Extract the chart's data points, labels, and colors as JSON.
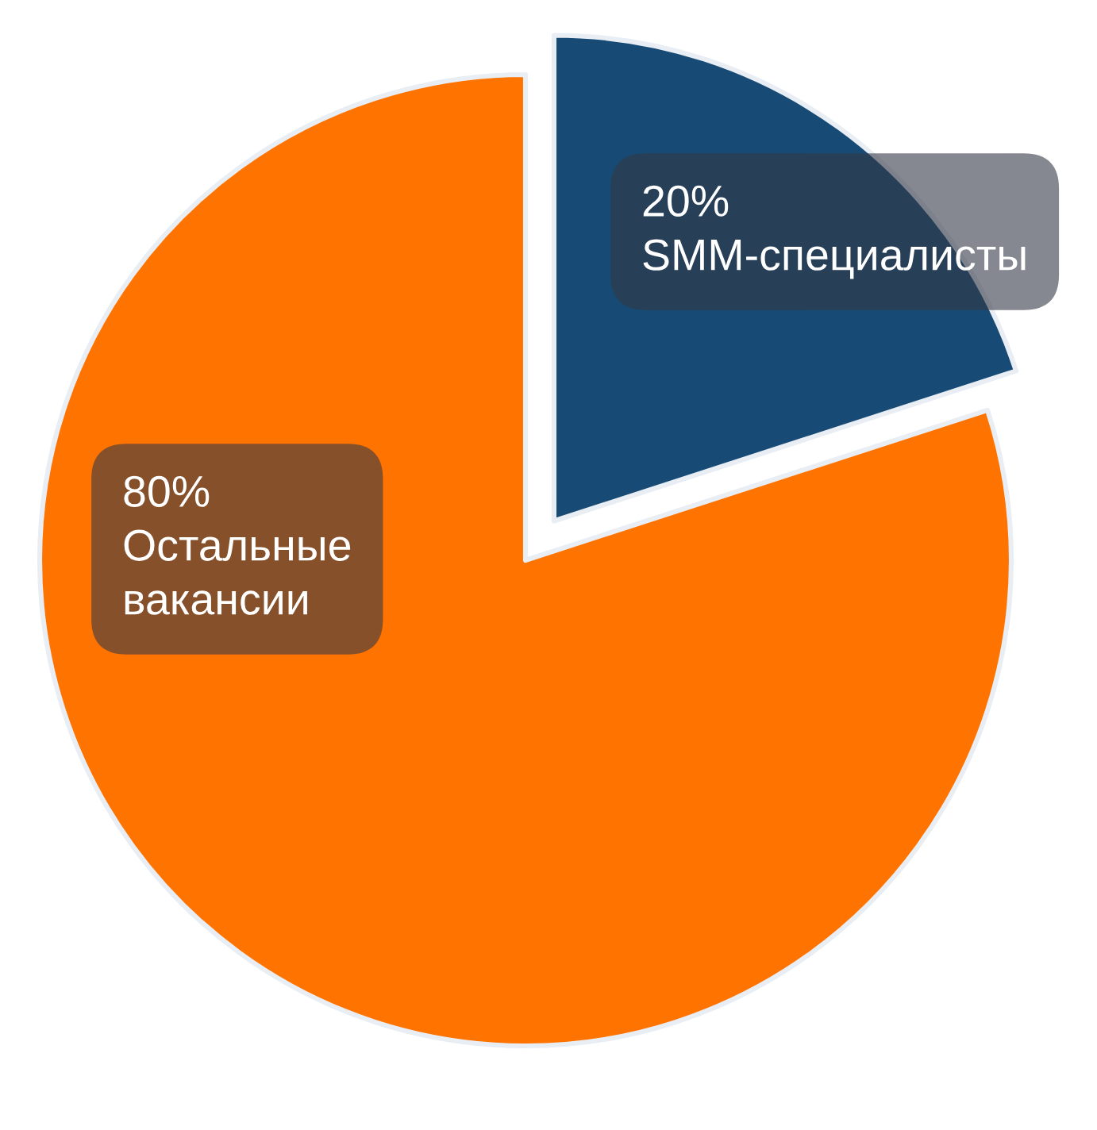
{
  "chart_data": {
    "type": "pie",
    "categories": [
      "SMM-специалисты",
      "Остальные вакансии"
    ],
    "values": [
      20,
      80
    ],
    "value_labels": [
      "20%",
      "80%"
    ],
    "colors": [
      "#174a74",
      "#ff7300"
    ]
  }
}
